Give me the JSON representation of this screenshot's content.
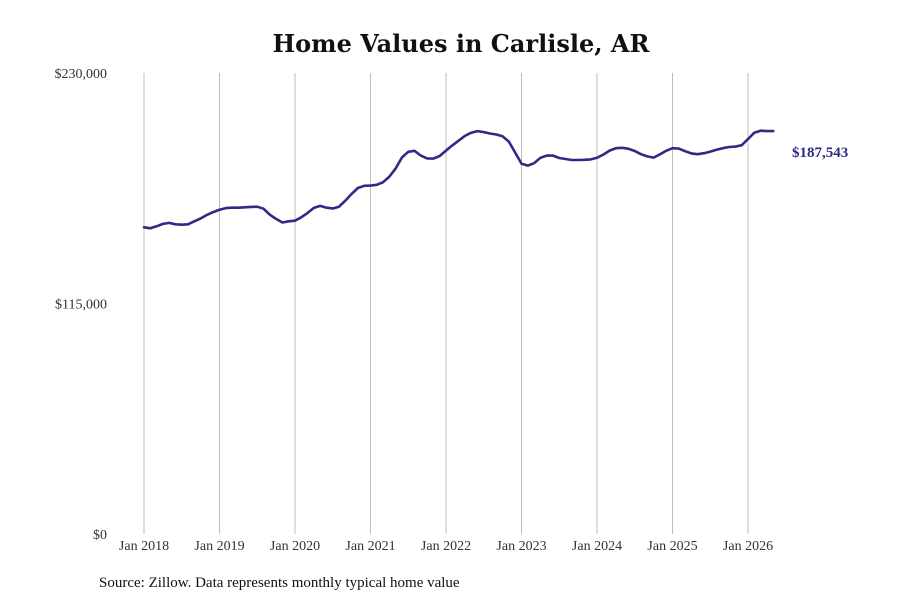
{
  "chart_data": {
    "type": "line",
    "title": "Home Values in Carlisle, AR",
    "xlabel": "",
    "ylabel": "",
    "xlim": [
      "2018-01",
      "2026-06"
    ],
    "ylim": [
      0,
      230000
    ],
    "y_ticks": [
      {
        "value": 0,
        "label": "$0"
      },
      {
        "value": 115000,
        "label": "$115,000"
      },
      {
        "value": 230000,
        "label": "$230,000"
      }
    ],
    "x_ticks": [
      {
        "date": "2018-01",
        "label": "Jan 2018"
      },
      {
        "date": "2019-01",
        "label": "Jan 2019"
      },
      {
        "date": "2020-01",
        "label": "Jan 2020"
      },
      {
        "date": "2021-01",
        "label": "Jan 2021"
      },
      {
        "date": "2022-01",
        "label": "Jan 2022"
      },
      {
        "date": "2023-01",
        "label": "Jan 2023"
      },
      {
        "date": "2024-01",
        "label": "Jan 2024"
      },
      {
        "date": "2025-01",
        "label": "Jan 2025"
      },
      {
        "date": "2026-01",
        "label": "Jan 2026"
      }
    ],
    "grid": {
      "vertical": true,
      "horizontal": false
    },
    "series": [
      {
        "color": "#2e2a85",
        "x": [
          "2018-01",
          "2018-02",
          "2018-03",
          "2018-04",
          "2018-05",
          "2018-06",
          "2018-07",
          "2018-08",
          "2018-09",
          "2018-10",
          "2018-11",
          "2018-12",
          "2019-01",
          "2019-02",
          "2019-03",
          "2019-04",
          "2019-05",
          "2019-06",
          "2019-07",
          "2019-08",
          "2019-09",
          "2019-10",
          "2019-11",
          "2019-12",
          "2020-01",
          "2020-02",
          "2020-03",
          "2020-04",
          "2020-05",
          "2020-06",
          "2020-07",
          "2020-08",
          "2020-09",
          "2020-10",
          "2020-11",
          "2020-12",
          "2021-01",
          "2021-02",
          "2021-03",
          "2021-04",
          "2021-05",
          "2021-06",
          "2021-07",
          "2021-08",
          "2021-09",
          "2021-10",
          "2021-11",
          "2021-12",
          "2022-01",
          "2022-02",
          "2022-03",
          "2022-04",
          "2022-05",
          "2022-06",
          "2022-07",
          "2022-08",
          "2022-09",
          "2022-10",
          "2022-11",
          "2022-12",
          "2023-01",
          "2023-02",
          "2023-03",
          "2023-04",
          "2023-05",
          "2023-06",
          "2023-07",
          "2023-08",
          "2023-09",
          "2023-10",
          "2023-11",
          "2023-12",
          "2024-01",
          "2024-02",
          "2024-03",
          "2024-04",
          "2024-05",
          "2024-06",
          "2024-07",
          "2024-08",
          "2024-09",
          "2024-10",
          "2024-11",
          "2024-12",
          "2025-01",
          "2025-02",
          "2025-03",
          "2025-04",
          "2025-05",
          "2025-06",
          "2025-07",
          "2025-08",
          "2025-09",
          "2025-10",
          "2025-11",
          "2025-12",
          "2026-01",
          "2026-02",
          "2026-03",
          "2026-04",
          "2026-05"
        ],
        "values": [
          153000,
          152500,
          153500,
          154700,
          155200,
          154500,
          154300,
          154500,
          156000,
          157400,
          159200,
          160600,
          161800,
          162600,
          162800,
          162800,
          163000,
          163200,
          163300,
          162300,
          159300,
          157200,
          155400,
          156000,
          156300,
          158000,
          160200,
          162700,
          163700,
          162800,
          162400,
          163300,
          166300,
          169700,
          172600,
          173700,
          173800,
          174200,
          175500,
          178300,
          182400,
          187900,
          190700,
          191200,
          188800,
          187400,
          187300,
          188600,
          191300,
          193900,
          196200,
          198600,
          200200,
          201000,
          200500,
          199800,
          199300,
          198400,
          195700,
          190300,
          184800,
          183800,
          185000,
          187700,
          188800,
          188800,
          187600,
          187100,
          186600,
          186600,
          186700,
          186900,
          187700,
          189300,
          191300,
          192500,
          192700,
          192200,
          191100,
          189500,
          188400,
          187800,
          189400,
          191200,
          192500,
          192300,
          191000,
          189900,
          189500,
          190000,
          190800,
          191700,
          192500,
          193100,
          193300,
          194000,
          197000,
          200200,
          201200,
          201000,
          187543
        ]
      }
    ],
    "last_value_label": "$187,543",
    "source_note": "Source: Zillow. Data represents monthly typical home value"
  }
}
